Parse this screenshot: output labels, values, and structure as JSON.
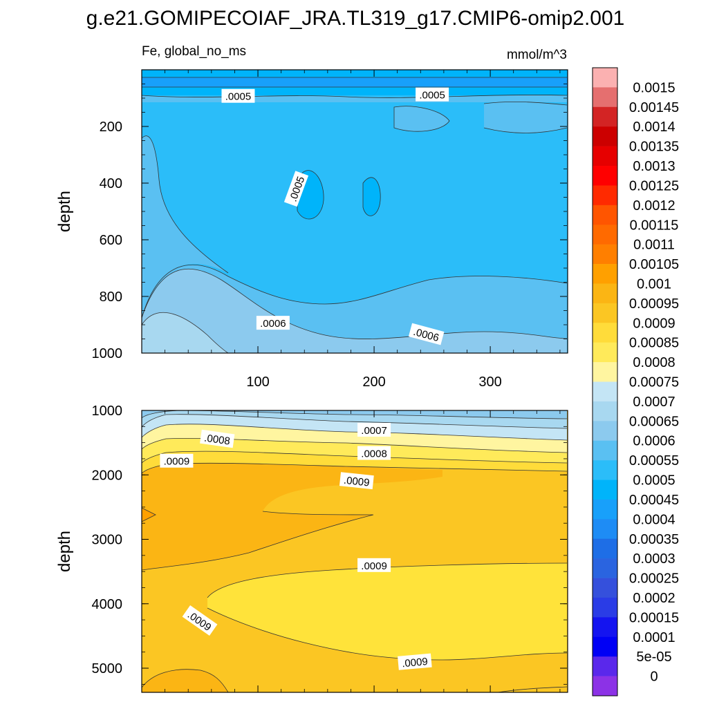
{
  "title": "g.e21.GOMIPECOIAF_JRA.TL319_g17.CMIP6-omip2.001",
  "chart_data": [
    {
      "type": "contour",
      "left_label": "Fe, global_no_ms",
      "units": "mmol/m^3",
      "ylabel": "depth",
      "xlabel": "",
      "xlim": [
        0,
        366
      ],
      "ylim": [
        0,
        1000
      ],
      "y_inverted": true,
      "xticks": [
        100,
        200,
        300
      ],
      "yticks": [
        200,
        400,
        600,
        800,
        1000
      ],
      "contour_labels": [
        {
          "text": ".0005",
          "x": 83,
          "y": 92
        },
        {
          "text": ".0005",
          "x": 250,
          "y": 87
        },
        {
          "text": ".0005",
          "x": 133,
          "y": 420
        },
        {
          "text": ".0006",
          "x": 113,
          "y": 893
        },
        {
          "text": ".0006",
          "x": 245,
          "y": 933
        }
      ]
    },
    {
      "type": "contour",
      "ylabel": "depth",
      "xlabel": "",
      "xlim": [
        0,
        366
      ],
      "ylim": [
        1000,
        5375
      ],
      "y_inverted": true,
      "yticks": [
        1000,
        2000,
        3000,
        4000,
        5000
      ],
      "contour_labels": [
        {
          "text": ".0007",
          "x": 200,
          "y": 1300
        },
        {
          "text": ".0008",
          "x": 65,
          "y": 1440
        },
        {
          "text": ".0008",
          "x": 200,
          "y": 1660
        },
        {
          "text": ".0009",
          "x": 30,
          "y": 1780
        },
        {
          "text": ".0009",
          "x": 185,
          "y": 2090
        },
        {
          "text": ".0009",
          "x": 200,
          "y": 3400
        },
        {
          "text": ".0009",
          "x": 50,
          "y": 4260
        },
        {
          "text": ".0009",
          "x": 235,
          "y": 4900
        }
      ]
    }
  ],
  "colorbar": {
    "levels": [
      "0.0015",
      "0.00145",
      "0.0014",
      "0.00135",
      "0.0013",
      "0.00125",
      "0.0012",
      "0.00115",
      "0.0011",
      "0.00105",
      "0.001",
      "0.00095",
      "0.0009",
      "0.00085",
      "0.0008",
      "0.00075",
      "0.0007",
      "0.00065",
      "0.0006",
      "0.00055",
      "0.0005",
      "0.00045",
      "0.0004",
      "0.00035",
      "0.0003",
      "0.00025",
      "0.0002",
      "0.00015",
      "0.0001",
      "5e-05",
      "0"
    ],
    "colors": [
      "#fbb1b1",
      "#e56f6f",
      "#d32424",
      "#cc0000",
      "#e60000",
      "#ff0000",
      "#ff2a00",
      "#ff5500",
      "#ff6a00",
      "#ff7f00",
      "#ffa000",
      "#fbb514",
      "#fbc623",
      "#ffdc3a",
      "#ffea5a",
      "#fff5a0",
      "#c4e5f5",
      "#a8d8f0",
      "#8ccaee",
      "#5ac0f2",
      "#2bbdf9",
      "#00b4fa",
      "#18a0fa",
      "#1e8cf5",
      "#1e6ee6",
      "#2a64e0",
      "#3550dc",
      "#2a3ce6",
      "#1414f0",
      "#0000f5",
      "#5a28eb",
      "#8c32e6"
    ]
  }
}
